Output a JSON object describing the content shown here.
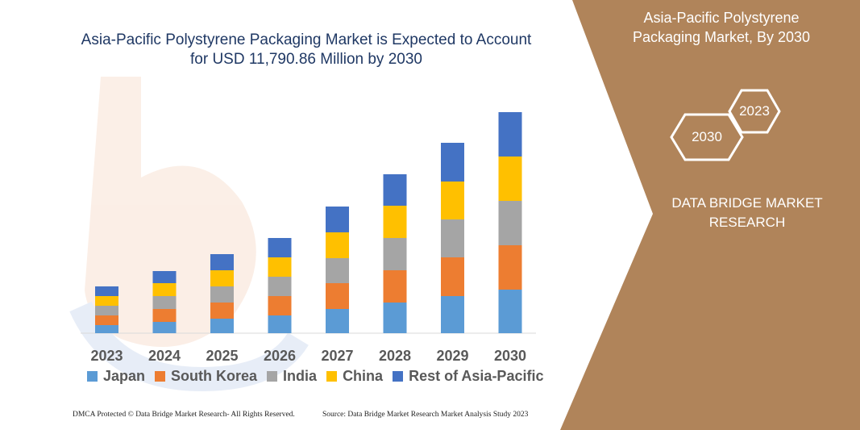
{
  "title": "Asia-Pacific Polystyrene Packaging Market is Expected to Account for USD 11,790.86 Million by 2030",
  "title_line1": "Asia-Pacific Polystyrene Packaging Market is Expected to Account",
  "title_line2": "for USD 11,790.86 Million by 2030",
  "side_panel": {
    "title_line1": "Asia-Pacific Polystyrene",
    "title_line2": "Packaging Market, By 2030",
    "hex_start": "2023",
    "hex_end": "2030",
    "brand_line1": "DATA BRIDGE MARKET",
    "brand_line2": "RESEARCH",
    "bg_color": "#b0845a"
  },
  "footer": {
    "left": "DMCA Protected © Data Bridge Market Research-  All Rights Reserved.",
    "right": "Source: Data Bridge Market Research  Market Analysis Study 2023"
  },
  "chart_data": {
    "type": "bar",
    "stacked": true,
    "categories": [
      "2023",
      "2024",
      "2025",
      "2026",
      "2027",
      "2028",
      "2029",
      "2030"
    ],
    "ylim": [
      0,
      280
    ],
    "grid": false,
    "legend_position": "bottom",
    "series": [
      {
        "name": "Japan",
        "color": "#5b9bd5",
        "values": [
          10,
          14,
          18,
          22,
          30,
          38,
          46,
          54
        ]
      },
      {
        "name": "South Korea",
        "color": "#ed7d31",
        "values": [
          12,
          16,
          20,
          24,
          32,
          40,
          48,
          55
        ]
      },
      {
        "name": "India",
        "color": "#a5a5a5",
        "values": [
          12,
          16,
          20,
          24,
          31,
          40,
          47,
          55
        ]
      },
      {
        "name": "China",
        "color": "#ffc000",
        "values": [
          12,
          16,
          20,
          24,
          32,
          40,
          47,
          55
        ]
      },
      {
        "name": "Rest of Asia-Pacific",
        "color": "#4472c4",
        "values": [
          12,
          15,
          20,
          24,
          32,
          39,
          48,
          55
        ]
      }
    ]
  }
}
